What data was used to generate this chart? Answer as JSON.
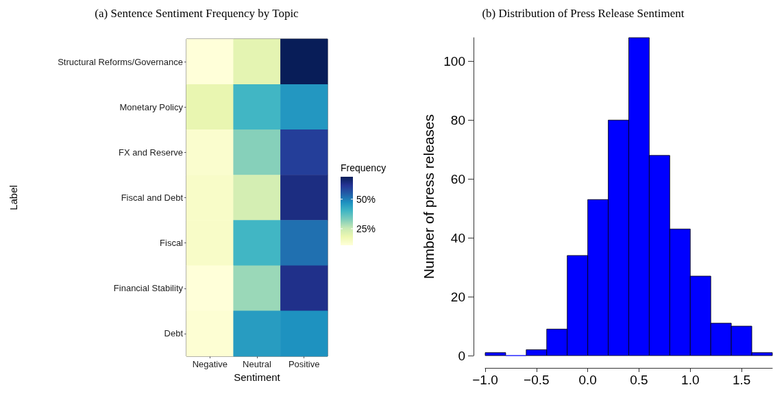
{
  "chart_data": [
    {
      "type": "heatmap",
      "title": "(a) Sentence Sentiment Frequency by Topic",
      "xlabel": "Sentiment",
      "ylabel": "Label",
      "clabel": "Frequency",
      "categories": [
        "Negative",
        "Neutral",
        "Positive"
      ],
      "y_categories": [
        "Structural Reforms/Governance",
        "Monetary Policy",
        "FX and Reserve",
        "Fiscal and Debt",
        "Fiscal",
        "Financial Stability",
        "Debt"
      ],
      "cells": [
        [
          11,
          20,
          69
        ],
        [
          19,
          40,
          46
        ],
        [
          13,
          32,
          60
        ],
        [
          14,
          23,
          64
        ],
        [
          14,
          40,
          52
        ],
        [
          11,
          30,
          63
        ],
        [
          12,
          45,
          47
        ]
      ],
      "clim": [
        11,
        69
      ],
      "cticks": [
        {
          "value": 25,
          "label": "25%"
        },
        {
          "value": 50,
          "label": "50%"
        }
      ]
    },
    {
      "type": "histogram",
      "title": "(b) Distribution of Press Release Sentiment",
      "ylabel": "Number of press releases",
      "color": "#0000ff",
      "bins": [
        -1.0,
        -0.8,
        -0.6,
        -0.4,
        -0.2,
        0.0,
        0.2,
        0.4,
        0.6,
        0.8,
        1.0,
        1.2,
        1.4,
        1.6,
        1.8
      ],
      "values": [
        1,
        0,
        2,
        9,
        34,
        53,
        80,
        108,
        68,
        43,
        27,
        11,
        10,
        1
      ],
      "xlim": [
        -1.0,
        1.8
      ],
      "ylim": [
        0,
        108
      ],
      "xticks": [
        {
          "value": -1.0,
          "label": "−1.0"
        },
        {
          "value": -0.5,
          "label": "−0.5"
        },
        {
          "value": 0.0,
          "label": "0.0"
        },
        {
          "value": 0.5,
          "label": "0.5"
        },
        {
          "value": 1.0,
          "label": "1.0"
        },
        {
          "value": 1.5,
          "label": "1.5"
        }
      ],
      "yticks": [
        0,
        20,
        40,
        60,
        80,
        100
      ]
    }
  ]
}
